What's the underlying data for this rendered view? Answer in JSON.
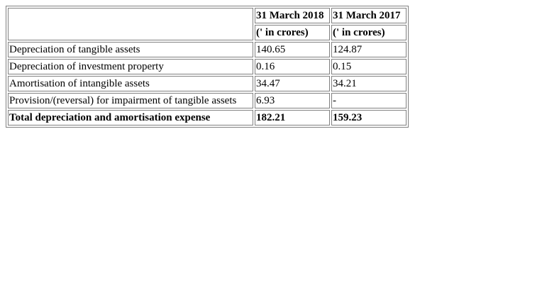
{
  "table": {
    "columns": [
      {
        "heading": "31 March 2018",
        "unit": "(' in crores)"
      },
      {
        "heading": "31 March 2017",
        "unit": "(' in crores)"
      }
    ],
    "rows": [
      {
        "label": "Depreciation of tangible assets",
        "values": [
          "140.65",
          "124.87"
        ],
        "bold": false
      },
      {
        "label": "Depreciation of investment property",
        "values": [
          "0.16",
          "0.15"
        ],
        "bold": false
      },
      {
        "label": "Amortisation of intangible assets",
        "values": [
          "34.47",
          "34.21"
        ],
        "bold": false
      },
      {
        "label": "Provision/(reversal) for impairment of tangible assets",
        "values": [
          "6.93",
          "-"
        ],
        "bold": false
      },
      {
        "label": "Total depreciation and amortisation expense",
        "values": [
          "182.21",
          "159.23"
        ],
        "bold": true
      }
    ]
  }
}
